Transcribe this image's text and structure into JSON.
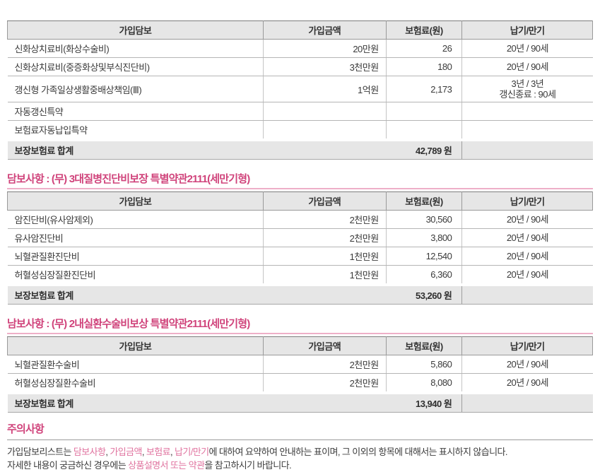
{
  "colors": {
    "accent": "#d0437b",
    "accent_light": "#eeafc8",
    "header_bg": "#e6e6e6",
    "total_bg": "#e6e6e6",
    "border": "#b5b5b5"
  },
  "columns": [
    "가입담보",
    "가입금액",
    "보험료(원)",
    "납기/만기"
  ],
  "table1": {
    "rows": [
      [
        "신화상치료비(화상수술비)",
        "20만원",
        "26",
        "20년 / 90세"
      ],
      [
        "신화상치료비(중증화상및부식진단비)",
        "3천만원",
        "180",
        "20년 / 90세"
      ],
      [
        "갱신형 가족일상생활중배상책임(Ⅲ)",
        "1억원",
        "2,173",
        "3년 / 3년\n갱신종료 : 90세"
      ],
      [
        "자동갱신특약",
        "",
        "",
        ""
      ],
      [
        "보험료자동납입특약",
        "",
        "",
        ""
      ]
    ],
    "total_label": "보장보험료 합계",
    "total_value": "42,789 원"
  },
  "section2": {
    "title": "담보사항 : (무) 3대질병진단비보장 특별약관2111(세만기형)",
    "table": {
      "rows": [
        [
          "암진단비(유사암제외)",
          "2천만원",
          "30,560",
          "20년 / 90세"
        ],
        [
          "유사암진단비",
          "2천만원",
          "3,800",
          "20년 / 90세"
        ],
        [
          "뇌혈관질환진단비",
          "1천만원",
          "12,540",
          "20년 / 90세"
        ],
        [
          "허혈성심장질환진단비",
          "1천만원",
          "6,360",
          "20년 / 90세"
        ]
      ],
      "total_label": "보장보험료 합계",
      "total_value": "53,260 원"
    }
  },
  "section3": {
    "title": "남보사항 : (무) 2내실환수술비보상 특별약관2111(세만기형)",
    "table": {
      "rows": [
        [
          "뇌혈관질환수술비",
          "2천만원",
          "5,860",
          "20년 / 90세"
        ],
        [
          "허혈성심장질환수술비",
          "2천만원",
          "8,080",
          "20년 / 90세"
        ]
      ],
      "total_label": "보장보험료 합계",
      "total_value": "13,940 원"
    }
  },
  "notice": {
    "title": "주의사항",
    "line1": [
      {
        "t": "가입담보리스트는 ",
        "p": false
      },
      {
        "t": "담보사항",
        "p": true
      },
      {
        "t": ", ",
        "p": false
      },
      {
        "t": "가입금액",
        "p": true
      },
      {
        "t": ", ",
        "p": false
      },
      {
        "t": "보험료",
        "p": true
      },
      {
        "t": ", ",
        "p": false
      },
      {
        "t": "납기/만기",
        "p": true
      },
      {
        "t": "에 대하여 요약하여 안내하는 표이며, 그 이외의 항목에 대해서는 표시하지 않습니다.",
        "p": false
      }
    ],
    "line2": [
      {
        "t": "자세한 내용이 궁금하신 경우에는 ",
        "p": false
      },
      {
        "t": "상품설명서 또는 약관",
        "p": true
      },
      {
        "t": "을 참고하시기 바랍니다.",
        "p": false
      }
    ]
  }
}
